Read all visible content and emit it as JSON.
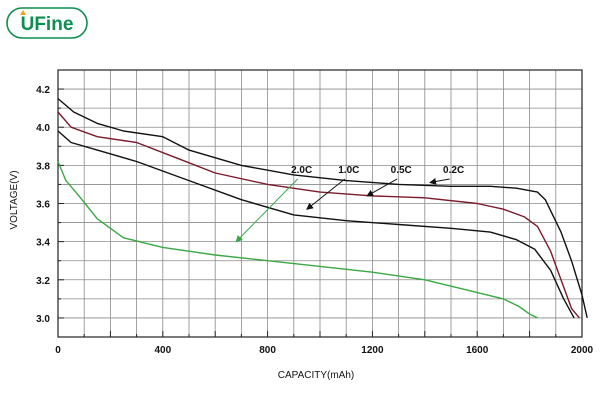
{
  "logo": {
    "text": "UFine",
    "color": "#0c8f50"
  },
  "chart_data": {
    "type": "line",
    "title": "",
    "xlabel": "CAPACITY(mAh)",
    "ylabel": "VOLTAGE(V)",
    "xlim": [
      0,
      2000
    ],
    "ylim": [
      2.9,
      4.3
    ],
    "xticks": [
      "0",
      "400",
      "800",
      "1200",
      "1600",
      "2000"
    ],
    "yticks": [
      "3.0",
      "3.2",
      "3.4",
      "3.6",
      "3.8",
      "4.0",
      "4.2"
    ],
    "grid": true,
    "series": [
      {
        "name": "0.2C",
        "color": "#111111",
        "x": [
          0,
          60,
          150,
          250,
          400,
          500,
          700,
          900,
          1100,
          1300,
          1500,
          1650,
          1750,
          1830,
          1860,
          1920,
          1960,
          2000,
          2020
        ],
        "y": [
          4.15,
          4.08,
          4.02,
          3.98,
          3.95,
          3.88,
          3.8,
          3.75,
          3.72,
          3.7,
          3.69,
          3.69,
          3.68,
          3.66,
          3.62,
          3.45,
          3.3,
          3.12,
          3.0
        ]
      },
      {
        "name": "0.5C",
        "color": "#7a1a2a",
        "x": [
          0,
          50,
          150,
          300,
          450,
          600,
          800,
          1000,
          1200,
          1400,
          1600,
          1700,
          1780,
          1830,
          1880,
          1920,
          1960,
          1990
        ],
        "y": [
          4.08,
          4.0,
          3.95,
          3.92,
          3.84,
          3.76,
          3.7,
          3.66,
          3.64,
          3.63,
          3.6,
          3.57,
          3.53,
          3.48,
          3.35,
          3.2,
          3.05,
          3.0
        ]
      },
      {
        "name": "1.0C",
        "color": "#111111",
        "x": [
          0,
          50,
          150,
          300,
          500,
          700,
          900,
          1100,
          1300,
          1500,
          1650,
          1750,
          1820,
          1880,
          1930,
          1970
        ],
        "y": [
          3.98,
          3.92,
          3.88,
          3.82,
          3.72,
          3.62,
          3.54,
          3.51,
          3.49,
          3.47,
          3.45,
          3.41,
          3.36,
          3.25,
          3.1,
          3.0
        ]
      },
      {
        "name": "2.0C",
        "color": "#3aa845",
        "x": [
          0,
          30,
          80,
          150,
          250,
          400,
          600,
          800,
          1000,
          1200,
          1400,
          1550,
          1700,
          1760,
          1800,
          1830
        ],
        "y": [
          3.82,
          3.72,
          3.64,
          3.52,
          3.42,
          3.37,
          3.33,
          3.3,
          3.27,
          3.24,
          3.2,
          3.15,
          3.1,
          3.06,
          3.02,
          3.0
        ]
      }
    ],
    "annotations": [
      {
        "label": "2.0C",
        "series": "2.0C",
        "text_at": [
          930,
          3.76
        ],
        "arrow_to": [
          680,
          3.4
        ]
      },
      {
        "label": "1.0C",
        "series": "1.0C",
        "text_at": [
          1110,
          3.76
        ],
        "arrow_to": [
          950,
          3.57
        ]
      },
      {
        "label": "0.5C",
        "series": "0.5C",
        "text_at": [
          1310,
          3.76
        ],
        "arrow_to": [
          1180,
          3.64
        ]
      },
      {
        "label": "0.2C",
        "series": "0.2C",
        "text_at": [
          1510,
          3.76
        ],
        "arrow_to": [
          1420,
          3.71
        ]
      }
    ]
  }
}
